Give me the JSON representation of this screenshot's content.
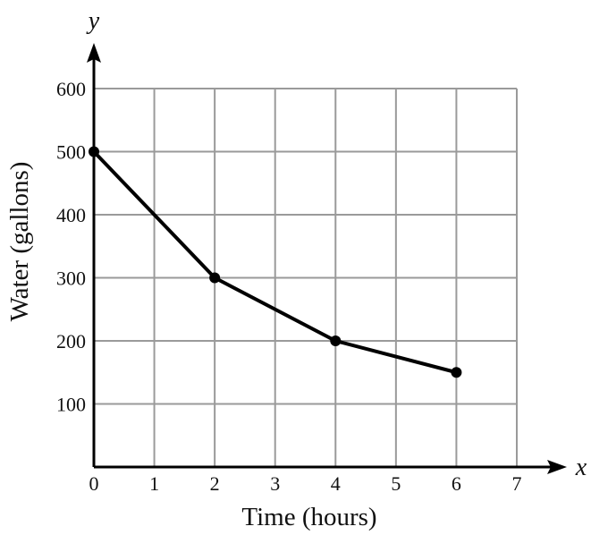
{
  "chart_data": {
    "type": "line",
    "title": "",
    "xlabel": "Time (hours)",
    "ylabel": "Water (gallons)",
    "x_axis_var": "x",
    "y_axis_var": "y",
    "xlim": [
      0,
      7
    ],
    "ylim": [
      0,
      600
    ],
    "x_ticks": [
      "0",
      "1",
      "2",
      "3",
      "4",
      "5",
      "6",
      "7"
    ],
    "y_ticks": [
      "100",
      "200",
      "300",
      "400",
      "500",
      "600"
    ],
    "grid": true,
    "markers": "filled circle",
    "colors": {
      "line": "#000000",
      "grid": "#9a9a9a",
      "axis": "#000000"
    },
    "series": [
      {
        "x": [
          0,
          2,
          4,
          6
        ],
        "y": [
          500,
          300,
          200,
          150
        ]
      }
    ]
  }
}
